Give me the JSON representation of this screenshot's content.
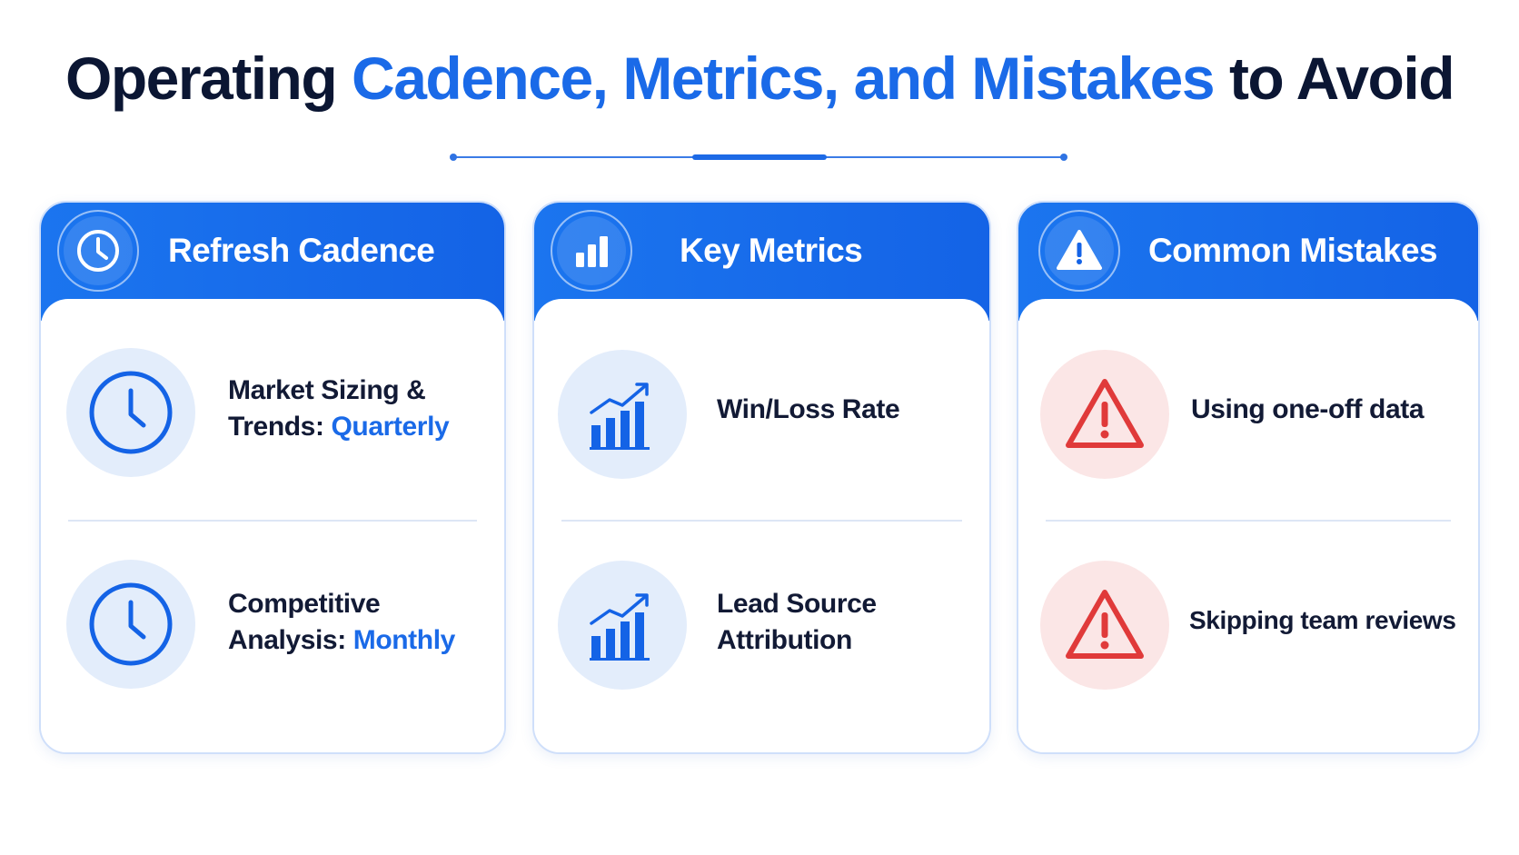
{
  "title": {
    "part1": "Operating",
    "part2": "Cadence, Metrics, and Mistakes",
    "part3": "to Avoid"
  },
  "colors": {
    "accent": "#1a6ae8",
    "header_blue": "#1463e6",
    "warning_red": "#e03a3a",
    "text_dark": "#0b1633"
  },
  "cards": [
    {
      "title": "Refresh Cadence",
      "icon": "clock-icon",
      "items": [
        {
          "icon": "clock-icon",
          "line1": "Market Sizing &",
          "line2_prefix": "Trends:",
          "line2_highlight": "Quarterly"
        },
        {
          "icon": "clock-icon",
          "line1": "Competitive",
          "line2_prefix": "Analysis:",
          "line2_highlight": "Monthly"
        }
      ]
    },
    {
      "title": "Key Metrics",
      "icon": "bar-chart-icon",
      "items": [
        {
          "icon": "growth-chart-icon",
          "line1": "Win/Loss Rate"
        },
        {
          "icon": "growth-chart-icon",
          "line1": "Lead Source",
          "line2": "Attribution"
        }
      ]
    },
    {
      "title": "Common Mistakes",
      "icon": "warning-icon",
      "items": [
        {
          "icon": "warning-icon",
          "line1": "Using one-off data"
        },
        {
          "icon": "warning-icon",
          "line1": "Skipping team reviews"
        }
      ]
    }
  ]
}
